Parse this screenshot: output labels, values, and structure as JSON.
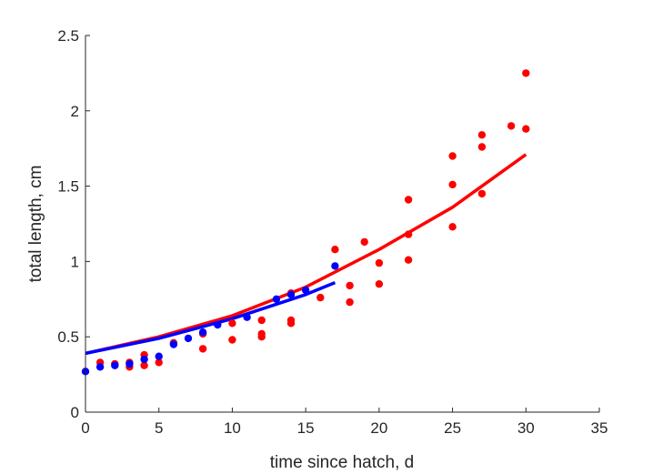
{
  "chart_data": {
    "type": "scatter",
    "title": "",
    "xlabel": "time since hatch, d",
    "ylabel": "total length, cm",
    "xlim": [
      0,
      35
    ],
    "ylim": [
      0,
      2.5
    ],
    "x_ticks": [
      0,
      5,
      10,
      15,
      20,
      25,
      30,
      35
    ],
    "y_ticks": [
      0,
      0.5,
      1,
      1.5,
      2,
      2.5
    ],
    "x_tick_labels": [
      "0",
      "5",
      "10",
      "15",
      "20",
      "25",
      "30",
      "35"
    ],
    "y_tick_labels": [
      "0",
      "0.5",
      "1",
      "1.5",
      "2",
      "2.5"
    ],
    "grid": false,
    "legend": "none",
    "series": [
      {
        "color": "#ff0000",
        "kind": "points",
        "x": [
          1,
          2,
          3,
          3,
          4,
          4,
          5,
          6,
          8,
          8,
          10,
          10,
          12,
          12,
          12,
          14,
          14,
          14,
          16,
          17,
          18,
          18,
          19,
          20,
          20,
          22,
          22,
          22,
          25,
          25,
          25,
          27,
          27,
          27,
          29,
          30,
          30
        ],
        "y": [
          0.33,
          0.32,
          0.3,
          0.33,
          0.38,
          0.31,
          0.33,
          0.46,
          0.42,
          0.52,
          0.59,
          0.48,
          0.61,
          0.52,
          0.5,
          0.61,
          0.59,
          0.79,
          0.76,
          1.08,
          0.84,
          0.73,
          1.13,
          0.99,
          0.85,
          1.41,
          1.18,
          1.01,
          1.7,
          1.51,
          1.23,
          1.84,
          1.76,
          1.45,
          1.9,
          2.25,
          1.88
        ]
      },
      {
        "color": "#0000ff",
        "kind": "points",
        "x": [
          0,
          1,
          2,
          3,
          4,
          5,
          6,
          7,
          8,
          9,
          11,
          13,
          14,
          15,
          17
        ],
        "y": [
          0.27,
          0.3,
          0.31,
          0.32,
          0.35,
          0.37,
          0.45,
          0.49,
          0.53,
          0.58,
          0.63,
          0.75,
          0.78,
          0.81,
          0.97
        ]
      },
      {
        "color": "#ff0000",
        "kind": "line",
        "x": [
          0,
          5,
          10,
          15,
          20,
          25,
          30
        ],
        "y": [
          0.39,
          0.5,
          0.64,
          0.83,
          1.08,
          1.36,
          1.71
        ]
      },
      {
        "color": "#0000ff",
        "kind": "line",
        "x": [
          0,
          5,
          10,
          15,
          17
        ],
        "y": [
          0.39,
          0.49,
          0.62,
          0.78,
          0.86
        ]
      }
    ]
  }
}
